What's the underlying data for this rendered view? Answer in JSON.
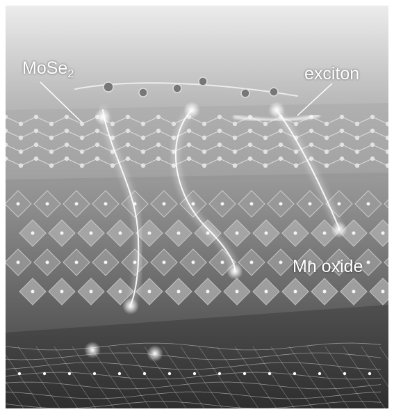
{
  "labels": {
    "mose2": {
      "text": "MoSe",
      "subscript": "2"
    },
    "exciton": "exciton",
    "mn_oxide": "Mn oxide"
  },
  "colors": {
    "frame": "#ffffff",
    "background_top": "#e8e8e8",
    "background_bottom": "#3a3a3a",
    "glow": "#ffffff",
    "atom": "#d9d9d9"
  }
}
